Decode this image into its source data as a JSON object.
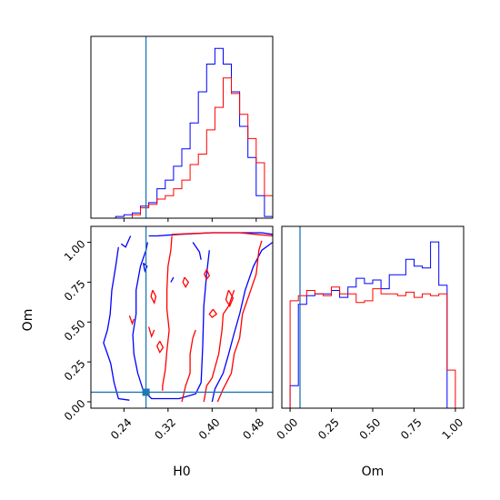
{
  "chart_data": {
    "type": "corner",
    "colors": {
      "series_a": "#0000ff",
      "series_b": "#ff0000",
      "truth": "#1f77b4",
      "axes": "#000000"
    },
    "truth": {
      "H0": 0.28,
      "Om": 0.06
    },
    "panels": [
      {
        "id": "hist-H0",
        "type": "histogram",
        "xlim": [
          0.18,
          0.51
        ],
        "bin_edges": [
          0.18,
          0.195,
          0.21,
          0.225,
          0.24,
          0.255,
          0.27,
          0.285,
          0.3,
          0.315,
          0.33,
          0.345,
          0.36,
          0.375,
          0.39,
          0.405,
          0.42,
          0.435,
          0.45,
          0.465,
          0.48,
          0.495,
          0.51
        ],
        "series": [
          {
            "color": "blue",
            "counts": [
              0,
              0,
              0,
              0.01,
              0.02,
              0.03,
              0.07,
              0.09,
              0.17,
              0.22,
              0.3,
              0.4,
              0.55,
              0.73,
              0.89,
              0.98,
              0.89,
              0.73,
              0.53,
              0.35,
              0.13,
              0.01
            ]
          },
          {
            "color": "red",
            "counts": [
              0,
              0,
              0,
              0,
              0,
              0.02,
              0.06,
              0.08,
              0.11,
              0.13,
              0.17,
              0.22,
              0.31,
              0.37,
              0.51,
              0.64,
              0.81,
              0.72,
              0.6,
              0.46,
              0.32,
              0.13
            ]
          }
        ]
      },
      {
        "id": "contour-H0-Om",
        "type": "contour",
        "xlabel": "H0",
        "ylabel": "Om",
        "xlim": [
          0.18,
          0.51
        ],
        "ylim": [
          -0.04,
          1.1
        ],
        "xticks": [
          "0.24",
          "0.32",
          "0.40",
          "0.48"
        ],
        "yticks": [
          "0.00",
          "0.25",
          "0.50",
          "0.75",
          "1.00"
        ],
        "series": [
          {
            "color": "blue",
            "levels": [
              [
                [
                  0.285,
                  1.04
                ],
                [
                  0.3,
                  1.04
                ],
                [
                  0.34,
                  1.05
                ],
                [
                  0.4,
                  1.06
                ],
                [
                  0.44,
                  1.06
                ],
                [
                  0.49,
                  1.06
                ],
                [
                  0.51,
                  1.05
                ]
              ],
              [
                [
                  0.283,
                  1.0
                ],
                [
                  0.28,
                  0.95
                ],
                [
                  0.27,
                  0.85
                ],
                [
                  0.262,
                  0.7
                ],
                [
                  0.262,
                  0.55
                ],
                [
                  0.256,
                  0.42
                ],
                [
                  0.258,
                  0.3
                ],
                [
                  0.265,
                  0.18
                ],
                [
                  0.275,
                  0.07
                ],
                [
                  0.29,
                  0.02
                ],
                [
                  0.34,
                  0.02
                ],
                [
                  0.37,
                  0.05
                ],
                [
                  0.38,
                  0.12
                ],
                [
                  0.383,
                  0.35
                ],
                [
                  0.385,
                  0.6
                ],
                [
                  0.39,
                  0.8
                ],
                [
                  0.395,
                  0.95
                ]
              ],
              [
                [
                  0.23,
                  0.97
                ],
                [
                  0.225,
                  0.85
                ],
                [
                  0.218,
                  0.7
                ],
                [
                  0.215,
                  0.55
                ],
                [
                  0.21,
                  0.45
                ],
                [
                  0.203,
                  0.37
                ],
                [
                  0.21,
                  0.3
                ],
                [
                  0.216,
                  0.24
                ],
                [
                  0.222,
                  0.12
                ],
                [
                  0.23,
                  0.02
                ],
                [
                  0.25,
                  0.01
                ]
              ],
              [
                [
                  0.4,
                  0.0
                ],
                [
                  0.405,
                  0.08
                ],
                [
                  0.42,
                  0.18
                ],
                [
                  0.43,
                  0.3
                ],
                [
                  0.44,
                  0.43
                ],
                [
                  0.45,
                  0.55
                ],
                [
                  0.46,
                  0.7
                ],
                [
                  0.475,
                  0.85
                ],
                [
                  0.49,
                  0.95
                ],
                [
                  0.51,
                  1.0
                ]
              ],
              [
                [
                  0.235,
                  0.99
                ],
                [
                  0.243,
                  0.97
                ],
                [
                  0.252,
                  1.04
                ]
              ],
              [
                [
                  0.275,
                  0.87
                ],
                [
                  0.282,
                  0.85
                ],
                [
                  0.278,
                  0.82
                ],
                [
                  0.275,
                  0.87
                ]
              ],
              [
                [
                  0.325,
                  0.75
                ],
                [
                  0.33,
                  0.78
                ]
              ],
              [
                [
                  0.365,
                  1.0
                ],
                [
                  0.377,
                  0.94
                ],
                [
                  0.38,
                  0.89
                ]
              ]
            ]
          },
          {
            "color": "red",
            "levels": [
              [
                [
                  0.327,
                  1.05
                ],
                [
                  0.4,
                  1.06
                ],
                [
                  0.45,
                  1.06
                ],
                [
                  0.48,
                  1.05
                ],
                [
                  0.51,
                  1.04
                ]
              ],
              [
                [
                  0.327,
                  1.04
                ],
                [
                  0.325,
                  0.95
                ],
                [
                  0.32,
                  0.85
                ],
                [
                  0.318,
                  0.7
                ],
                [
                  0.318,
                  0.58
                ],
                [
                  0.322,
                  0.45
                ],
                [
                  0.318,
                  0.32
                ],
                [
                  0.315,
                  0.2
                ],
                [
                  0.31,
                  0.1
                ],
                [
                  0.31,
                  0.07
                ]
              ],
              [
                [
                  0.41,
                  0.0
                ],
                [
                  0.42,
                  0.08
                ],
                [
                  0.435,
                  0.18
                ],
                [
                  0.44,
                  0.3
                ],
                [
                  0.45,
                  0.4
                ],
                [
                  0.455,
                  0.55
                ],
                [
                  0.47,
                  0.7
                ],
                [
                  0.48,
                  0.8
                ],
                [
                  0.485,
                  0.95
                ],
                [
                  0.49,
                  1.01
                ]
              ],
              [
                [
                  0.345,
                  0.0
                ],
                [
                  0.352,
                  0.1
                ],
                [
                  0.36,
                  0.18
                ],
                [
                  0.36,
                  0.3
                ],
                [
                  0.365,
                  0.4
                ],
                [
                  0.37,
                  0.45
                ]
              ],
              [
                [
                  0.385,
                  0.0
                ],
                [
                  0.39,
                  0.1
                ],
                [
                  0.4,
                  0.15
                ],
                [
                  0.412,
                  0.3
                ],
                [
                  0.418,
                  0.45
                ],
                [
                  0.42,
                  0.55
                ],
                [
                  0.43,
                  0.6
                ],
                [
                  0.44,
                  0.7
                ]
              ],
              [
                [
                  0.292,
                  0.7
                ],
                [
                  0.298,
                  0.66
                ],
                [
                  0.295,
                  0.62
                ],
                [
                  0.289,
                  0.66
                ],
                [
                  0.292,
                  0.7
                ]
              ],
              [
                [
                  0.305,
                  0.38
                ],
                [
                  0.311,
                  0.34
                ],
                [
                  0.305,
                  0.31
                ],
                [
                  0.3,
                  0.35
                ],
                [
                  0.305,
                  0.38
                ]
              ],
              [
                [
                  0.35,
                  0.78
                ],
                [
                  0.357,
                  0.75
                ],
                [
                  0.352,
                  0.72
                ],
                [
                  0.347,
                  0.75
                ],
                [
                  0.35,
                  0.78
                ]
              ],
              [
                [
                  0.39,
                  0.83
                ],
                [
                  0.395,
                  0.79
                ],
                [
                  0.39,
                  0.77
                ],
                [
                  0.386,
                  0.8
                ],
                [
                  0.39,
                  0.83
                ]
              ],
              [
                [
                  0.285,
                  0.47
                ],
                [
                  0.29,
                  0.41
                ],
                [
                  0.295,
                  0.45
                ]
              ],
              [
                [
                  0.25,
                  0.54
                ],
                [
                  0.255,
                  0.49
                ],
                [
                  0.258,
                  0.52
                ]
              ],
              [
                [
                  0.43,
                  0.7
                ],
                [
                  0.438,
                  0.65
                ],
                [
                  0.432,
                  0.6
                ],
                [
                  0.425,
                  0.64
                ],
                [
                  0.43,
                  0.7
                ]
              ],
              [
                [
                  0.402,
                  0.58
                ],
                [
                  0.408,
                  0.55
                ],
                [
                  0.4,
                  0.53
                ],
                [
                  0.395,
                  0.55
                ],
                [
                  0.402,
                  0.58
                ]
              ]
            ]
          }
        ]
      },
      {
        "id": "hist-Om",
        "type": "histogram",
        "xlabel": "Om",
        "xlim": [
          -0.05,
          1.05
        ],
        "xticks": [
          "0.00",
          "0.25",
          "0.50",
          "0.75",
          "1.00"
        ],
        "bin_edges": [
          -0.05,
          0.0,
          0.05,
          0.1,
          0.15,
          0.2,
          0.25,
          0.3,
          0.35,
          0.4,
          0.45,
          0.5,
          0.55,
          0.6,
          0.65,
          0.7,
          0.75,
          0.8,
          0.85,
          0.9,
          0.95,
          1.0,
          1.05
        ],
        "series": [
          {
            "color": "blue",
            "counts": [
              0,
              0.13,
              0.6,
              0.65,
              0.66,
              0.66,
              0.68,
              0.64,
              0.7,
              0.75,
              0.72,
              0.74,
              0.69,
              0.77,
              0.77,
              0.86,
              0.82,
              0.81,
              0.96,
              0.71,
              0.0,
              0.0
            ]
          },
          {
            "color": "red",
            "counts": [
              0,
              0.62,
              0.65,
              0.68,
              0.66,
              0.65,
              0.7,
              0.66,
              0.66,
              0.61,
              0.62,
              0.69,
              0.66,
              0.66,
              0.65,
              0.67,
              0.64,
              0.66,
              0.65,
              0.66,
              0.22,
              0.0
            ]
          }
        ]
      }
    ]
  }
}
